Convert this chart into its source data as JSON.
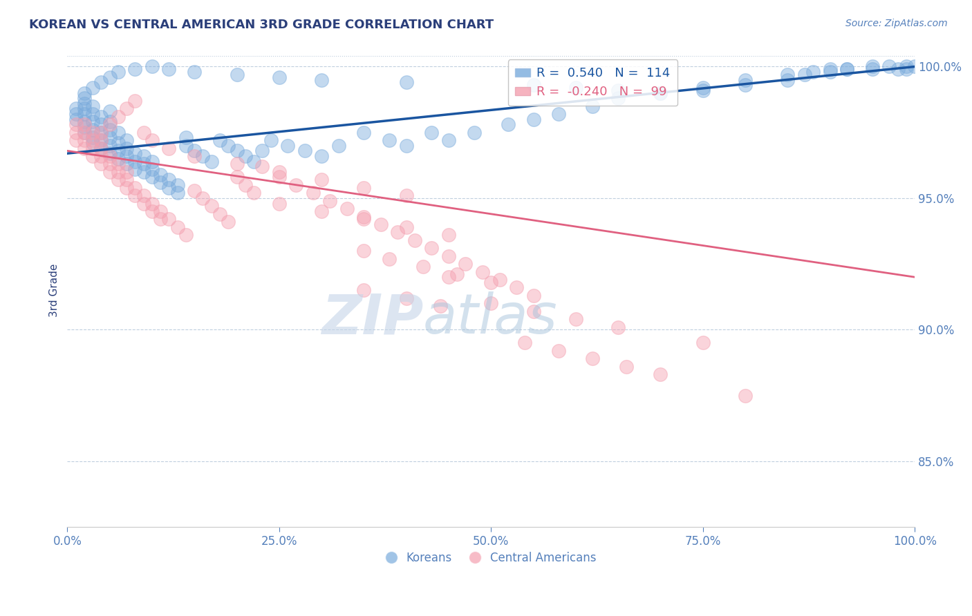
{
  "title": "KOREAN VS CENTRAL AMERICAN 3RD GRADE CORRELATION CHART",
  "source_text": "Source: ZipAtlas.com",
  "ylabel": "3rd Grade",
  "xmin": 0.0,
  "xmax": 1.0,
  "ymin": 0.825,
  "ymax": 1.005,
  "legend_r_blue": "0.540",
  "legend_n_blue": "114",
  "legend_r_pink": "-0.240",
  "legend_n_pink": "99",
  "blue_color": "#7AABDC",
  "pink_color": "#F4A0B0",
  "trendline_blue_color": "#1A55A0",
  "trendline_pink_color": "#E06080",
  "background_color": "#FFFFFF",
  "title_color": "#2B3F7A",
  "axis_label_color": "#2B3F7A",
  "tick_color": "#5580BB",
  "watermark_color": "#C8D8EE",
  "grid_color": "#C0CFDF",
  "blue_trend_x0": 0.0,
  "blue_trend_y0": 0.967,
  "blue_trend_x1": 1.0,
  "blue_trend_y1": 1.0,
  "pink_trend_x0": 0.0,
  "pink_trend_y0": 0.968,
  "pink_trend_x1": 1.0,
  "pink_trend_y1": 0.92,
  "blue_x": [
    0.01,
    0.01,
    0.01,
    0.02,
    0.02,
    0.02,
    0.02,
    0.02,
    0.02,
    0.02,
    0.03,
    0.03,
    0.03,
    0.03,
    0.03,
    0.03,
    0.04,
    0.04,
    0.04,
    0.04,
    0.04,
    0.05,
    0.05,
    0.05,
    0.05,
    0.05,
    0.05,
    0.06,
    0.06,
    0.06,
    0.06,
    0.07,
    0.07,
    0.07,
    0.07,
    0.08,
    0.08,
    0.08,
    0.09,
    0.09,
    0.09,
    0.1,
    0.1,
    0.1,
    0.11,
    0.11,
    0.12,
    0.12,
    0.13,
    0.13,
    0.14,
    0.14,
    0.15,
    0.16,
    0.17,
    0.18,
    0.19,
    0.2,
    0.21,
    0.22,
    0.23,
    0.24,
    0.26,
    0.28,
    0.3,
    0.32,
    0.35,
    0.38,
    0.4,
    0.43,
    0.45,
    0.48,
    0.52,
    0.55,
    0.58,
    0.62,
    0.65,
    0.7,
    0.75,
    0.8,
    0.85,
    0.88,
    0.9,
    0.92,
    0.95,
    0.97,
    0.98,
    0.99,
    0.99,
    1.0,
    0.02,
    0.03,
    0.04,
    0.05,
    0.06,
    0.08,
    0.1,
    0.12,
    0.15,
    0.2,
    0.25,
    0.3,
    0.4,
    0.55,
    0.6,
    0.65,
    0.7,
    0.75,
    0.8,
    0.85,
    0.87,
    0.9,
    0.92,
    0.95
  ],
  "blue_y": [
    0.98,
    0.982,
    0.984,
    0.975,
    0.977,
    0.979,
    0.982,
    0.984,
    0.986,
    0.988,
    0.971,
    0.973,
    0.976,
    0.979,
    0.982,
    0.985,
    0.969,
    0.972,
    0.975,
    0.978,
    0.981,
    0.967,
    0.97,
    0.973,
    0.976,
    0.979,
    0.983,
    0.965,
    0.968,
    0.971,
    0.975,
    0.963,
    0.966,
    0.969,
    0.972,
    0.961,
    0.964,
    0.967,
    0.96,
    0.963,
    0.966,
    0.958,
    0.961,
    0.964,
    0.956,
    0.959,
    0.954,
    0.957,
    0.952,
    0.955,
    0.97,
    0.973,
    0.968,
    0.966,
    0.964,
    0.972,
    0.97,
    0.968,
    0.966,
    0.964,
    0.968,
    0.972,
    0.97,
    0.968,
    0.966,
    0.97,
    0.975,
    0.972,
    0.97,
    0.975,
    0.972,
    0.975,
    0.978,
    0.98,
    0.982,
    0.985,
    0.988,
    0.99,
    0.992,
    0.995,
    0.997,
    0.998,
    0.999,
    0.999,
    0.999,
    1.0,
    0.999,
    1.0,
    0.999,
    1.0,
    0.99,
    0.992,
    0.994,
    0.996,
    0.998,
    0.999,
    1.0,
    0.999,
    0.998,
    0.997,
    0.996,
    0.995,
    0.994,
    0.993,
    0.992,
    0.991,
    0.99,
    0.991,
    0.993,
    0.995,
    0.997,
    0.998,
    0.999,
    1.0
  ],
  "pink_x": [
    0.01,
    0.01,
    0.01,
    0.02,
    0.02,
    0.02,
    0.02,
    0.03,
    0.03,
    0.03,
    0.03,
    0.04,
    0.04,
    0.04,
    0.04,
    0.05,
    0.05,
    0.05,
    0.06,
    0.06,
    0.06,
    0.07,
    0.07,
    0.07,
    0.08,
    0.08,
    0.09,
    0.09,
    0.1,
    0.1,
    0.11,
    0.11,
    0.12,
    0.13,
    0.14,
    0.15,
    0.16,
    0.17,
    0.18,
    0.19,
    0.2,
    0.21,
    0.22,
    0.23,
    0.25,
    0.27,
    0.29,
    0.31,
    0.33,
    0.35,
    0.37,
    0.39,
    0.41,
    0.43,
    0.45,
    0.47,
    0.49,
    0.51,
    0.53,
    0.55,
    0.04,
    0.05,
    0.06,
    0.07,
    0.08,
    0.09,
    0.1,
    0.12,
    0.15,
    0.2,
    0.25,
    0.3,
    0.35,
    0.4,
    0.45,
    0.25,
    0.3,
    0.35,
    0.4,
    0.45,
    0.35,
    0.38,
    0.42,
    0.46,
    0.5,
    0.54,
    0.58,
    0.62,
    0.66,
    0.7,
    0.5,
    0.55,
    0.6,
    0.65,
    0.75,
    0.8,
    0.35,
    0.4,
    0.44
  ],
  "pink_y": [
    0.972,
    0.975,
    0.978,
    0.969,
    0.972,
    0.975,
    0.978,
    0.966,
    0.969,
    0.972,
    0.975,
    0.963,
    0.966,
    0.969,
    0.972,
    0.96,
    0.963,
    0.966,
    0.957,
    0.96,
    0.963,
    0.954,
    0.957,
    0.96,
    0.951,
    0.954,
    0.948,
    0.951,
    0.945,
    0.948,
    0.942,
    0.945,
    0.942,
    0.939,
    0.936,
    0.953,
    0.95,
    0.947,
    0.944,
    0.941,
    0.958,
    0.955,
    0.952,
    0.962,
    0.958,
    0.955,
    0.952,
    0.949,
    0.946,
    0.943,
    0.94,
    0.937,
    0.934,
    0.931,
    0.928,
    0.925,
    0.922,
    0.919,
    0.916,
    0.913,
    0.975,
    0.978,
    0.981,
    0.984,
    0.987,
    0.975,
    0.972,
    0.969,
    0.966,
    0.963,
    0.96,
    0.957,
    0.954,
    0.951,
    0.92,
    0.948,
    0.945,
    0.942,
    0.939,
    0.936,
    0.93,
    0.927,
    0.924,
    0.921,
    0.918,
    0.895,
    0.892,
    0.889,
    0.886,
    0.883,
    0.91,
    0.907,
    0.904,
    0.901,
    0.895,
    0.875,
    0.915,
    0.912,
    0.909
  ]
}
